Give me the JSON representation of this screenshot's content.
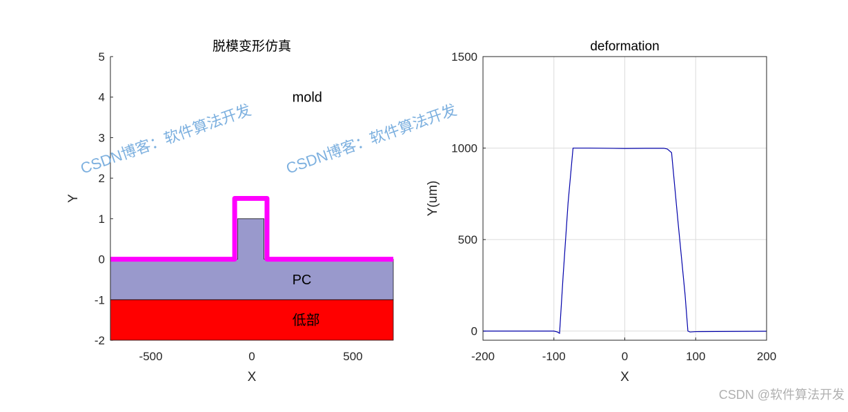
{
  "chart_data": [
    {
      "type": "patch",
      "title": "脱模变形仿真",
      "xlabel": "X",
      "ylabel": "Y",
      "xlim": [
        -700,
        700
      ],
      "xticks": [
        -500,
        0,
        500
      ],
      "ylim": [
        -2,
        5
      ],
      "yticks": [
        -2,
        -1,
        0,
        1,
        2,
        3,
        4,
        5
      ],
      "grid": false,
      "box": false,
      "regions": [
        {
          "label": "低部",
          "color": "#ff0000",
          "style": "fill",
          "x": [
            -700,
            700,
            700,
            -700
          ],
          "y": [
            -2,
            -2,
            -1,
            -1
          ]
        },
        {
          "label": "PC",
          "color": "#9999cc",
          "style": "fill",
          "x": [
            -700,
            -70,
            -70,
            60,
            60,
            700,
            700,
            -700
          ],
          "y": [
            0,
            0,
            1,
            1,
            0,
            0,
            -1,
            -1
          ]
        },
        {
          "label": "mold",
          "color": "#ff00ff",
          "style": "line",
          "x": [
            -700,
            -85,
            -85,
            75,
            75,
            700
          ],
          "y": [
            0,
            0,
            1.5,
            1.5,
            0,
            0
          ]
        }
      ]
    },
    {
      "type": "line",
      "title": "deformation",
      "xlabel": "X",
      "ylabel": "Y(um)",
      "xlim": [
        -200,
        200
      ],
      "xticks": [
        -200,
        -100,
        0,
        100,
        200
      ],
      "ylim": [
        -50,
        1500
      ],
      "yticks": [
        0,
        500,
        1000,
        1500
      ],
      "grid": true,
      "box": true,
      "color": "#0000aa",
      "x": [
        -200,
        -150,
        -100,
        -95,
        -92,
        -87,
        -80,
        -73,
        -50,
        0,
        30,
        55,
        60,
        66,
        75,
        85,
        89,
        92,
        100,
        150,
        200
      ],
      "y": [
        0,
        0,
        0,
        -5,
        -12,
        300,
        700,
        1000,
        1000,
        998,
        999,
        999,
        995,
        975,
        600,
        200,
        0,
        -5,
        -3,
        -2,
        -1
      ]
    }
  ],
  "watermarks": [
    "CSDN博客：软件算法开发",
    "CSDN博客：软件算法开发",
    "CSDN @软件算法开发"
  ]
}
